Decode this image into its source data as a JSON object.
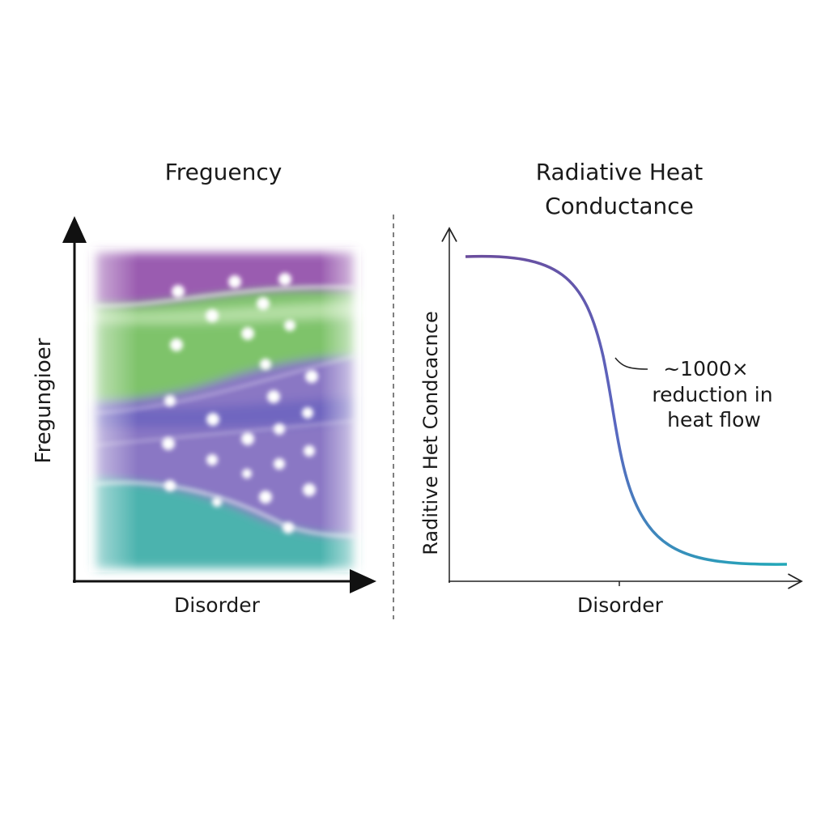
{
  "left_panel": {
    "title": "Freguency",
    "y_label": "Fregungioer",
    "x_label": "Disorder"
  },
  "right_panel": {
    "title_lines": [
      "Radiative Heat",
      "Conductance"
    ],
    "y_label": "Raditive Het Condcacnce",
    "x_label": "Disorder",
    "annotation_lines": [
      "~1000×",
      "reduction in",
      "heat flow"
    ]
  }
}
